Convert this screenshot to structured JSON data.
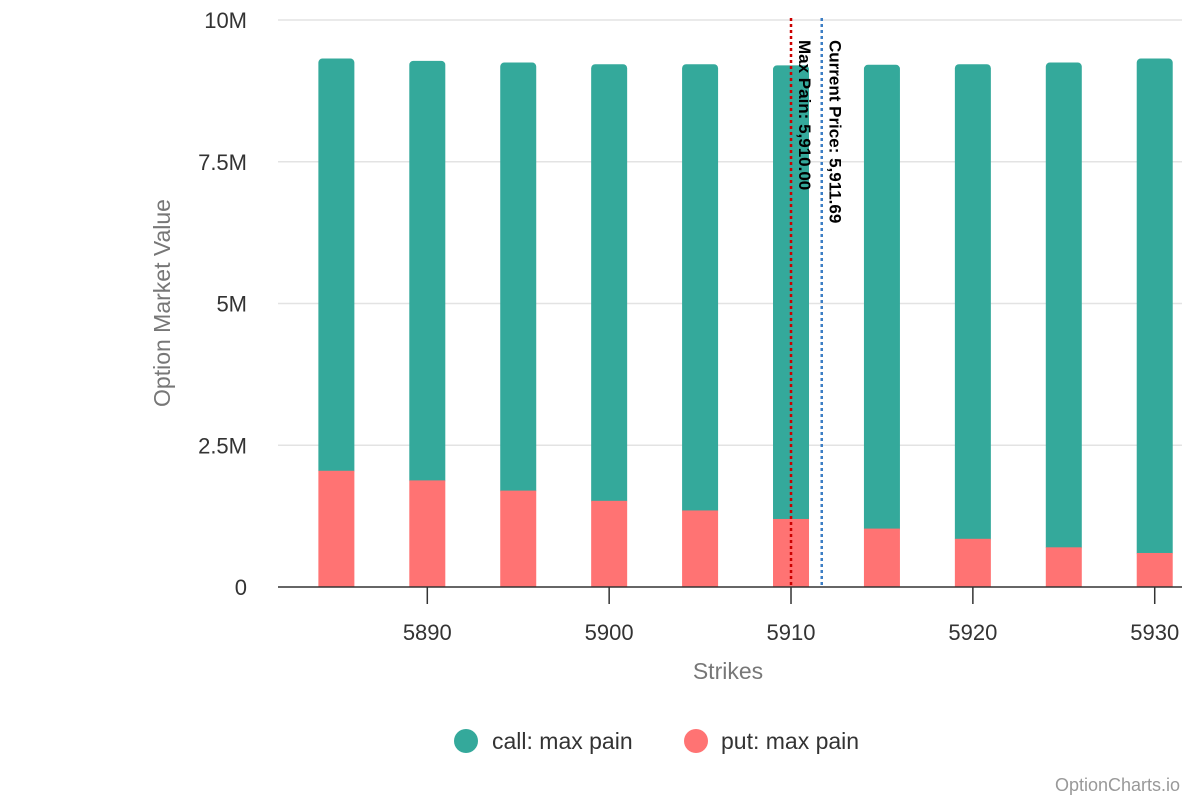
{
  "chart_data": {
    "type": "bar",
    "stacked": true,
    "x_ticks": [
      5890,
      5900,
      5910,
      5920,
      5930
    ],
    "categories": [
      5885,
      5890,
      5895,
      5900,
      5905,
      5910,
      5915,
      5920,
      5925,
      5930
    ],
    "series": [
      {
        "name": "put: max pain",
        "color": "#ff7373",
        "values": [
          2.05,
          1.88,
          1.7,
          1.52,
          1.35,
          1.2,
          1.03,
          0.85,
          0.7,
          0.6
        ]
      },
      {
        "name": "call: max pain",
        "color": "#34a99b",
        "values": [
          7.27,
          7.4,
          7.55,
          7.7,
          7.87,
          8.0,
          8.18,
          8.37,
          8.55,
          8.72
        ]
      }
    ],
    "value_unit": "M",
    "y_ticks": [
      "0",
      "2.5M",
      "5M",
      "7.5M",
      "10M"
    ],
    "ylim": [
      0,
      10
    ],
    "xlim": [
      5881.9,
      5931.5
    ],
    "xlabel": "Strikes",
    "ylabel": "Option Market Value",
    "grid": true,
    "legend_position": "bottom-center",
    "reference_lines": [
      {
        "x": 5910.0,
        "label": "Max Pain: 5,910.00",
        "color": "#cc0000"
      },
      {
        "x": 5911.69,
        "label": "Current Price: 5,911.69",
        "color": "#3b7dc4"
      }
    ]
  },
  "credit": "OptionCharts.io"
}
